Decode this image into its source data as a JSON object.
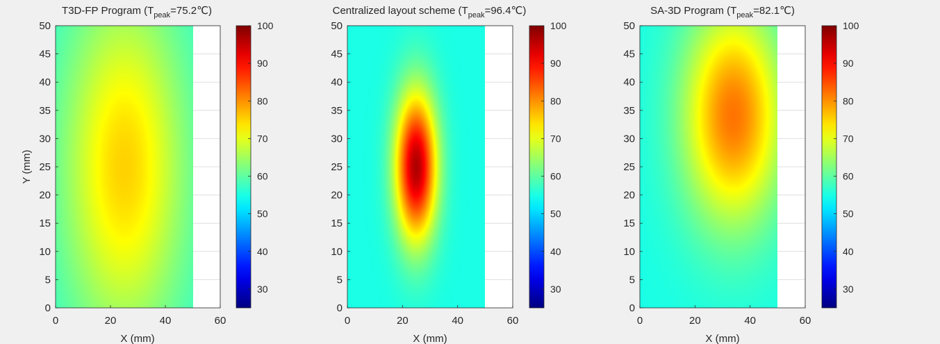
{
  "figure": {
    "background": "#f0f0f0"
  },
  "colorbar": {
    "colormap": "jet",
    "limits": [
      25,
      100
    ],
    "ticks": [
      30,
      40,
      50,
      60,
      70,
      80,
      90,
      100
    ],
    "tick_labels": [
      "30",
      "40",
      "50",
      "60",
      "70",
      "80",
      "90",
      "100"
    ]
  },
  "chart_data": [
    {
      "type": "heatmap",
      "title_main": "T3D-FP Program (T",
      "title_sub": "peak",
      "title_rest": "=75.2℃)",
      "xlabel": "X (mm)",
      "ylabel": "Y (mm)",
      "xlim": [
        0,
        60
      ],
      "ylim": [
        0,
        50
      ],
      "x_ticks": [
        0,
        20,
        40,
        60
      ],
      "x_tick_labels": [
        "0",
        "20",
        "40",
        "60"
      ],
      "y_ticks": [
        0,
        5,
        10,
        15,
        20,
        25,
        30,
        35,
        40,
        45,
        50
      ],
      "y_tick_labels": [
        "0",
        "5",
        "10",
        "15",
        "20",
        "25",
        "30",
        "35",
        "40",
        "45",
        "50"
      ],
      "grid": true,
      "data_extent": {
        "x": [
          0,
          50
        ],
        "y": [
          0,
          50
        ]
      },
      "peak_temperature": 75.2,
      "hotspots": [
        {
          "x": 25,
          "y": 25,
          "peak": 75.2,
          "sigma_x": 22,
          "sigma_y": 30
        }
      ],
      "baseline": 56
    },
    {
      "type": "heatmap",
      "title_main": "Centralized layout scheme (T",
      "title_sub": "peak",
      "title_rest": "=96.4℃)",
      "xlabel": "X (mm)",
      "ylabel": "",
      "xlim": [
        0,
        60
      ],
      "ylim": [
        0,
        50
      ],
      "x_ticks": [
        0,
        20,
        40,
        60
      ],
      "x_tick_labels": [
        "0",
        "20",
        "40",
        "60"
      ],
      "y_ticks": [
        0,
        5,
        10,
        15,
        20,
        25,
        30,
        35,
        40,
        45,
        50
      ],
      "y_tick_labels": [
        "0",
        "5",
        "10",
        "15",
        "20",
        "25",
        "30",
        "35",
        "40",
        "45",
        "50"
      ],
      "grid": true,
      "data_extent": {
        "x": [
          0,
          50
        ],
        "y": [
          0,
          50
        ]
      },
      "peak_temperature": 96.4,
      "hotspots": [
        {
          "x": 25,
          "y": 25,
          "peak": 96.4,
          "sigma_x": 7.5,
          "sigma_y": 13
        }
      ],
      "baseline": 55
    },
    {
      "type": "heatmap",
      "title_main": "SA-3D Program (T",
      "title_sub": "peak",
      "title_rest": "=82.1℃)",
      "xlabel": "X (mm)",
      "ylabel": "",
      "xlim": [
        0,
        60
      ],
      "ylim": [
        0,
        50
      ],
      "x_ticks": [
        0,
        20,
        40,
        60
      ],
      "x_tick_labels": [
        "0",
        "20",
        "40",
        "60"
      ],
      "y_ticks": [
        0,
        5,
        10,
        15,
        20,
        25,
        30,
        35,
        40,
        45,
        50
      ],
      "y_tick_labels": [
        "0",
        "5",
        "10",
        "15",
        "20",
        "25",
        "30",
        "35",
        "40",
        "45",
        "50"
      ],
      "grid": true,
      "data_extent": {
        "x": [
          0,
          50
        ],
        "y": [
          0,
          50
        ]
      },
      "peak_temperature": 82.1,
      "hotspots": [
        {
          "x": 34,
          "y": 34,
          "peak": 82.1,
          "sigma_x": 18,
          "sigma_y": 19
        }
      ],
      "baseline": 55
    }
  ]
}
